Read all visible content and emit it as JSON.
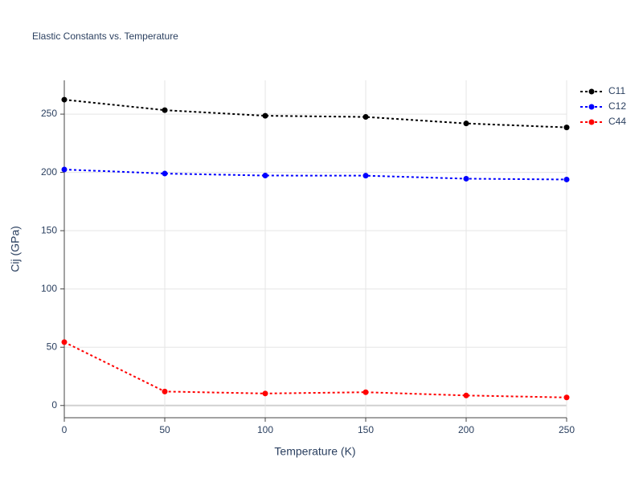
{
  "chart_data": {
    "type": "line",
    "title": "Elastic Constants vs. Temperature",
    "x_label": "Temperature (K)",
    "y_label": "Cij (GPa)",
    "x": [
      0,
      50,
      100,
      150,
      200,
      250
    ],
    "series": [
      {
        "name": "C11",
        "color": "#000000",
        "values": [
          262.4,
          253.4,
          248.6,
          247.6,
          242,
          238.6
        ]
      },
      {
        "name": "C12",
        "color": "#0000ff",
        "values": [
          202.5,
          199,
          197.3,
          197.2,
          194.6,
          193.9
        ]
      },
      {
        "name": "C44",
        "color": "#ff0000",
        "values": [
          54.4,
          12,
          10.3,
          11.4,
          8.6,
          6.9
        ]
      }
    ],
    "xlim": [
      0,
      250
    ],
    "xticks": [
      0,
      50,
      100,
      150,
      200,
      250
    ],
    "ylim": [
      -10.5,
      279
    ],
    "yticks": [
      0,
      50,
      100,
      150,
      200,
      250
    ],
    "grid": true,
    "legend": "right"
  }
}
